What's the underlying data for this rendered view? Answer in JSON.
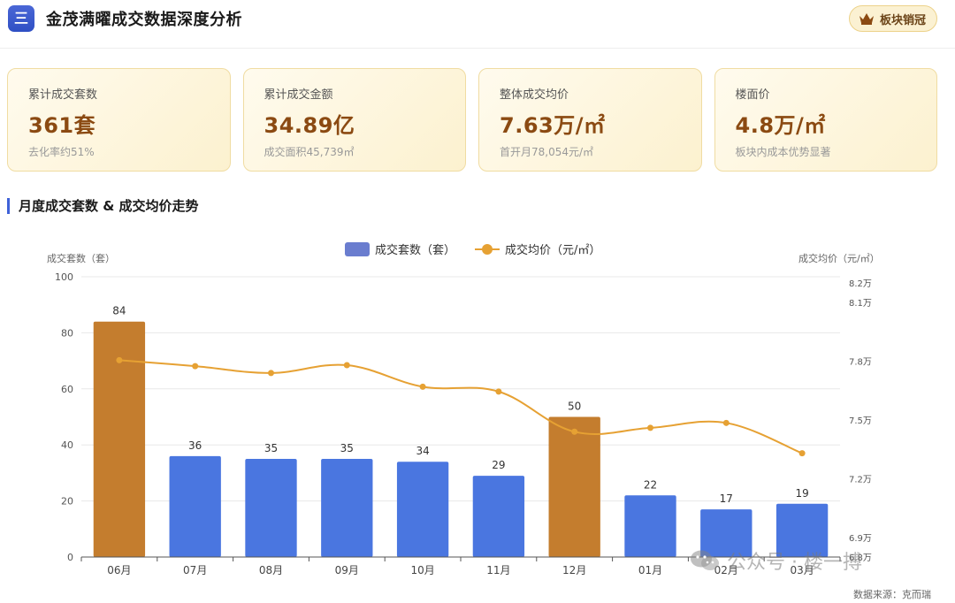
{
  "header": {
    "menu_icon_glyph": "三",
    "title": "金茂满曜成交数据深度分析",
    "badge_label": "板块销冠",
    "badge_icon": "crown-icon"
  },
  "cards": [
    {
      "label": "累计成交套数",
      "value": "361套",
      "sub": "去化率约51%"
    },
    {
      "label": "累计成交金额",
      "value": "34.89亿",
      "sub": "成交面积45,739㎡"
    },
    {
      "label": "整体成交均价",
      "value": "7.63万/㎡",
      "sub": "首开月78,054元/㎡"
    },
    {
      "label": "楼面价",
      "value": "4.8万/㎡",
      "sub": "板块内成本优势显著"
    }
  ],
  "section_title": "月度成交套数 & 成交均价走势",
  "chart_data": {
    "type": "bar",
    "categories": [
      "06月",
      "07月",
      "08月",
      "09月",
      "10月",
      "11月",
      "12月",
      "01月",
      "02月",
      "03月"
    ],
    "series": [
      {
        "name": "成交套数（套）",
        "type": "bar",
        "axis": "left",
        "values": [
          84,
          36,
          35,
          35,
          34,
          29,
          50,
          22,
          17,
          19
        ]
      },
      {
        "name": "成交均价（元/㎡）",
        "type": "line",
        "axis": "right",
        "values": [
          78054,
          77750,
          77400,
          77800,
          76700,
          76450,
          74400,
          74600,
          74850,
          73300
        ]
      }
    ],
    "highlight_categories": [
      "06月",
      "12月"
    ],
    "ylabel": "成交套数（套）",
    "ylim": [
      0,
      100
    ],
    "yticks": [
      "0",
      "20",
      "40",
      "60",
      "80",
      "100"
    ],
    "y2label": "成交均价（元/㎡）",
    "y2lim": [
      68000,
      82000
    ],
    "y2ticks": [
      {
        "value": 68000,
        "label": "6.8万"
      },
      {
        "value": 69000,
        "label": "6.9万"
      },
      {
        "value": 72000,
        "label": "7.2万"
      },
      {
        "value": 75000,
        "label": "7.5万"
      },
      {
        "value": 78000,
        "label": "7.8万"
      },
      {
        "value": 81000,
        "label": "8.1万"
      },
      {
        "value": 82000,
        "label": "8.2万"
      }
    ],
    "colors": {
      "bar": "#4a76e0",
      "bar_highlight": "#c47d2e",
      "line": "#e6a133",
      "grid": "#e8e8e8",
      "axis": "#555555"
    },
    "grid": true,
    "legend_position": "top-center"
  },
  "watermark": {
    "text": "公众号 · 楼一搏",
    "icon": "wechat-icon"
  },
  "source": "数据来源：克而瑞"
}
